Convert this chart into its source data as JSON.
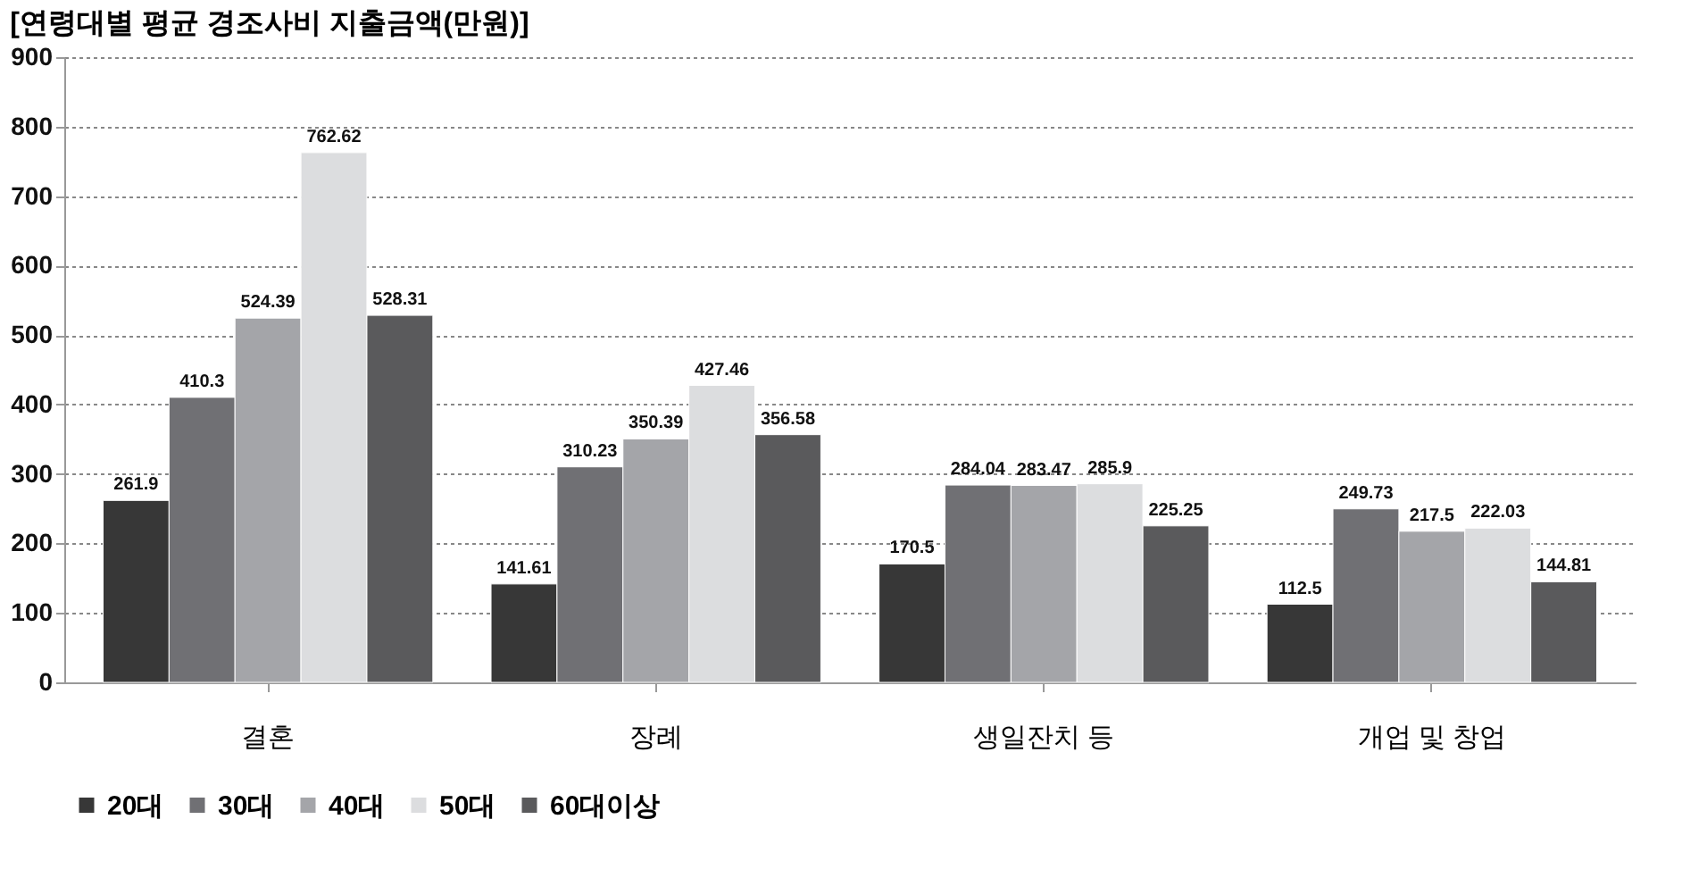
{
  "chart_data": {
    "type": "bar",
    "title": "[연령대별 평균 경조사비 지출금액(만원)]",
    "categories": [
      "결혼",
      "장례",
      "생일잔치 등",
      "개업 및 창업"
    ],
    "series": [
      {
        "name": "20대",
        "color": "#373737",
        "values": [
          261.9,
          141.61,
          170.5,
          112.5
        ]
      },
      {
        "name": "30대",
        "color": "#707074",
        "values": [
          410.3,
          310.23,
          284.04,
          249.73
        ]
      },
      {
        "name": "40대",
        "color": "#a4a5a9",
        "values": [
          524.39,
          350.39,
          283.47,
          217.5
        ]
      },
      {
        "name": "50대",
        "color": "#dcdddf",
        "values": [
          762.62,
          427.46,
          285.9,
          222.03
        ]
      },
      {
        "name": "60대이상",
        "color": "#5a5a5c",
        "values": [
          528.31,
          356.58,
          225.25,
          144.81
        ]
      }
    ],
    "ylim": [
      0,
      900
    ],
    "yticks": [
      0,
      100,
      200,
      300,
      400,
      500,
      600,
      700,
      800,
      900
    ],
    "grid": "y",
    "legend": "bottom",
    "data_labels": true
  }
}
